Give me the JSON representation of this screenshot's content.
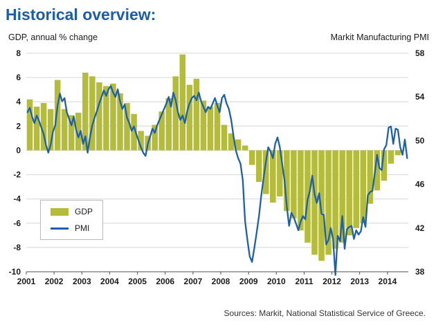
{
  "page": {
    "title": "Historical overview:",
    "left_axis_title": "GDP, annual % change",
    "right_axis_title": "Markit Manufacturing PMI",
    "source_note": "Sources: Markit, National Statistical Service of Greece."
  },
  "legend": {
    "gdp_label": "GDP",
    "pmi_label": "PMI"
  },
  "colors": {
    "title": "#1C5CA8",
    "gdp_bar": "#B5BC3A",
    "pmi_line": "#1E5FA9",
    "grid": "#D6D6D6",
    "axis": "#4D4D4D",
    "text": "#1a1a1a"
  },
  "chart_data": {
    "type": "bar",
    "title": "Historical overview:",
    "left_axis": {
      "label": "GDP, annual % change",
      "min": -10,
      "max": 8,
      "tick_step": 2
    },
    "right_axis": {
      "label": "Markit Manufacturing PMI",
      "min": 38,
      "max": 58,
      "tick_step": 4
    },
    "x_axis": {
      "labels": [
        2001,
        2002,
        2003,
        2004,
        2005,
        2006,
        2007,
        2008,
        2009,
        2010,
        2011,
        2012,
        2013,
        2014
      ],
      "start": 2001.0,
      "end": 2014.75
    },
    "grid": true,
    "legend_position": "lower-left",
    "series": [
      {
        "name": "GDP",
        "type": "bar",
        "axis": "left",
        "frequency": "quarterly",
        "start": 2001.0,
        "values": [
          4.2,
          3.6,
          3.9,
          3.4,
          5.8,
          3.4,
          2.9,
          3.1,
          6.4,
          6.1,
          5.6,
          5.3,
          5.5,
          4.7,
          3.9,
          3.0,
          1.6,
          1.2,
          2.1,
          3.2,
          4.3,
          6.1,
          7.9,
          5.4,
          5.9,
          4.1,
          3.6,
          3.9,
          2.1,
          1.4,
          0.9,
          0.4,
          -1.2,
          -2.6,
          -3.6,
          -4.3,
          -3.8,
          -5.0,
          -5.6,
          -6.6,
          -7.6,
          -8.6,
          -9.1,
          -8.6,
          -8.1,
          -7.6,
          -7.0,
          -6.4,
          -6.0,
          -4.4,
          -3.3,
          -2.5,
          -1.1,
          -0.4
        ]
      },
      {
        "name": "PMI",
        "type": "line",
        "axis": "right",
        "frequency": "monthly",
        "start": 2001.0,
        "values": [
          52.6,
          53.0,
          52.2,
          51.6,
          52.3,
          51.8,
          51.2,
          50.6,
          49.6,
          48.9,
          49.6,
          50.8,
          51.4,
          53.2,
          54.3,
          53.6,
          53.9,
          52.6,
          52.0,
          51.4,
          52.2,
          51.0,
          50.3,
          50.9,
          49.7,
          50.4,
          48.9,
          50.3,
          51.4,
          52.1,
          52.7,
          53.4,
          54.0,
          54.6,
          54.1,
          54.7,
          55.0,
          54.4,
          54.0,
          54.7,
          53.6,
          52.9,
          53.3,
          52.1,
          51.6,
          50.9,
          51.3,
          50.6,
          50.0,
          49.4,
          48.9,
          48.6,
          49.7,
          50.4,
          51.1,
          50.7,
          51.4,
          51.9,
          52.4,
          52.9,
          53.4,
          54.0,
          53.1,
          54.4,
          53.7,
          52.6,
          51.9,
          52.3,
          51.6,
          52.7,
          53.4,
          53.9,
          54.1,
          53.7,
          54.4,
          53.6,
          53.1,
          52.6,
          53.1,
          52.9,
          53.4,
          53.9,
          53.2,
          52.6,
          53.9,
          54.2,
          53.4,
          52.9,
          51.9,
          50.4,
          49.1,
          48.4,
          47.9,
          46.4,
          42.6,
          40.9,
          39.4,
          38.9,
          40.2,
          41.6,
          43.1,
          45.0,
          46.6,
          48.1,
          49.4,
          49.0,
          48.4,
          49.7,
          50.3,
          49.4,
          47.9,
          46.4,
          44.0,
          42.2,
          43.4,
          43.0,
          42.4,
          41.8,
          42.6,
          43.1,
          42.8,
          44.6,
          45.4,
          46.8,
          45.1,
          44.3,
          45.2,
          43.3,
          43.2,
          40.5,
          40.9,
          42.0,
          41.0,
          37.7,
          41.3,
          40.8,
          43.1,
          40.1,
          41.9,
          42.1,
          42.2,
          41.0,
          41.8,
          41.4,
          41.7,
          43.0,
          42.1,
          45.0,
          45.3,
          45.4,
          47.0,
          48.7,
          47.5,
          47.3,
          49.2,
          49.6,
          51.2,
          51.3,
          49.7,
          51.1,
          51.0,
          49.4,
          48.7,
          50.1,
          48.4
        ]
      }
    ]
  }
}
